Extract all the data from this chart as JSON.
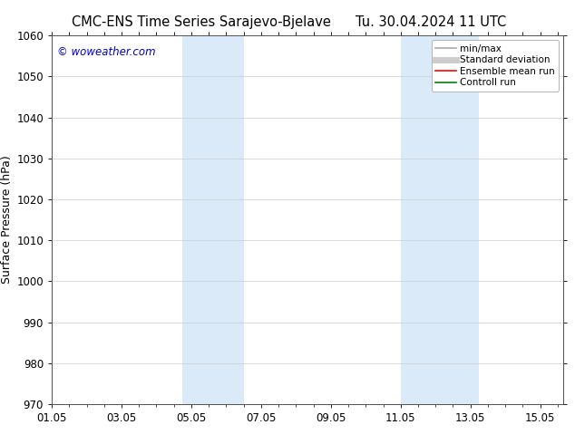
{
  "title_left": "CMC-ENS Time Series Sarajevo-Bjelave",
  "title_right": "Tu. 30.04.2024 11 UTC",
  "ylabel": "Surface Pressure (hPa)",
  "ylim": [
    970,
    1060
  ],
  "yticks": [
    970,
    980,
    990,
    1000,
    1010,
    1020,
    1030,
    1040,
    1050,
    1060
  ],
  "xtick_labels": [
    "01.05",
    "03.05",
    "05.05",
    "07.05",
    "09.05",
    "11.05",
    "13.05",
    "15.05"
  ],
  "xtick_positions": [
    0,
    2,
    4,
    6,
    8,
    10,
    12,
    14
  ],
  "xlim": [
    0,
    14.667
  ],
  "watermark": "© woweather.com",
  "watermark_color": "#0000cc",
  "bg_color": "#ffffff",
  "shaded_regions": [
    {
      "x_start": 3.75,
      "x_end": 4.5,
      "color": "#daeaf8"
    },
    {
      "x_start": 4.5,
      "x_end": 5.5,
      "color": "#daeaf8"
    },
    {
      "x_start": 10.0,
      "x_end": 11.0,
      "color": "#daeaf8"
    },
    {
      "x_start": 11.0,
      "x_end": 12.25,
      "color": "#daeaf8"
    }
  ],
  "legend_items": [
    {
      "label": "min/max",
      "color": "#aaaaaa",
      "linewidth": 1.2
    },
    {
      "label": "Standard deviation",
      "color": "#cccccc",
      "linewidth": 5.0
    },
    {
      "label": "Ensemble mean run",
      "color": "#ff0000",
      "linewidth": 1.2
    },
    {
      "label": "Controll run",
      "color": "#008000",
      "linewidth": 1.2
    }
  ],
  "grid_color": "#cccccc",
  "grid_linewidth": 0.5,
  "title_fontsize": 10.5,
  "tick_fontsize": 8.5,
  "ylabel_fontsize": 9,
  "watermark_fontsize": 8.5,
  "legend_fontsize": 7.5
}
